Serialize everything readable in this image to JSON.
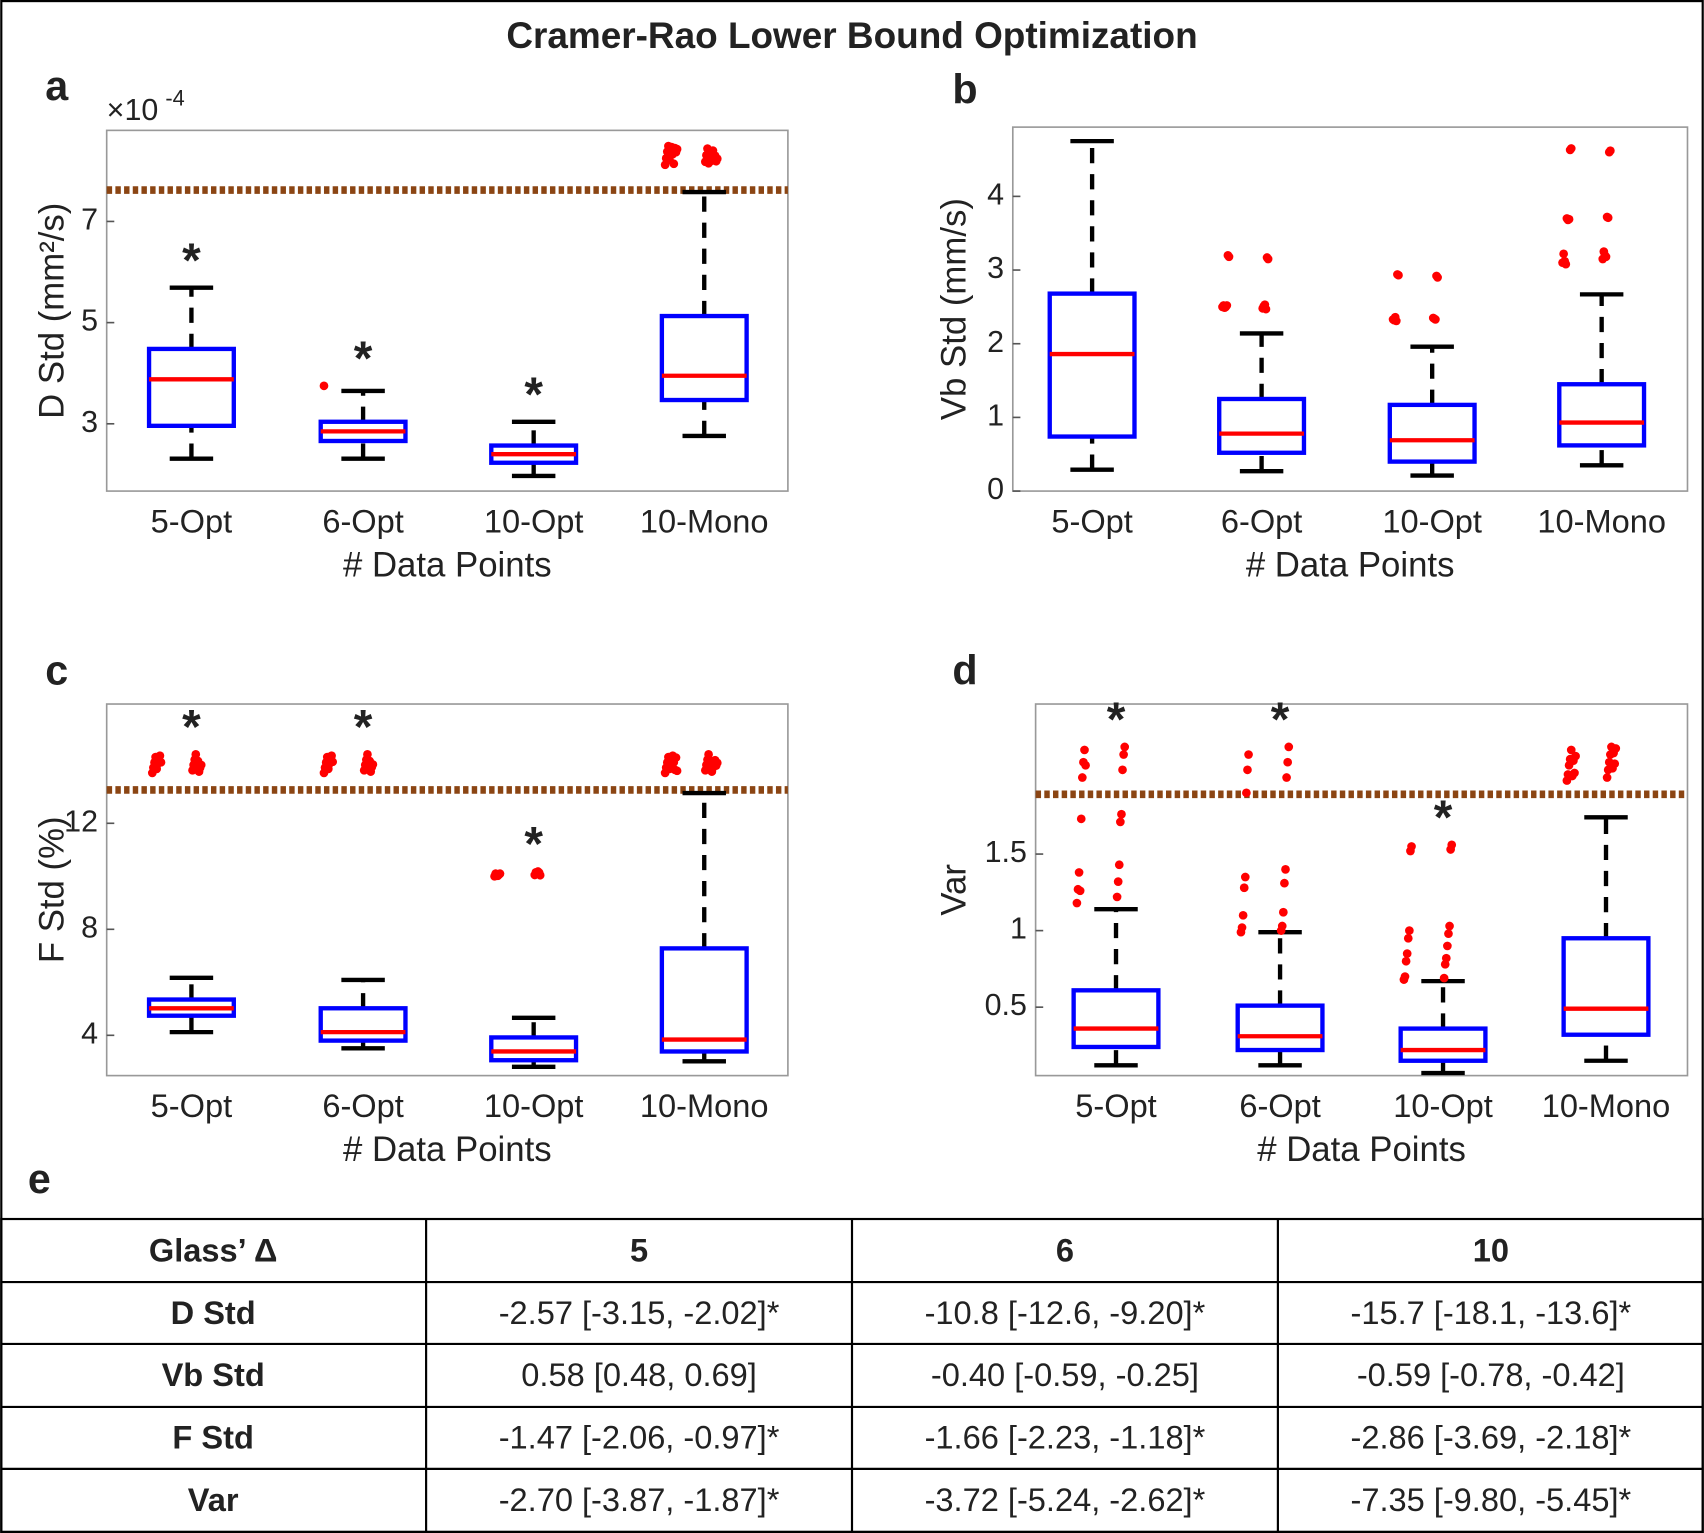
{
  "title": "Cramer-Rao Lower Bound Optimization",
  "chart_data": [
    {
      "type": "box",
      "panel_label": "a",
      "ylabel": "D Std (mm²/s)",
      "xlabel": "# Data Points",
      "multiplier": "×10",
      "multiplier_exp": "-4",
      "categories": [
        "5-Opt",
        "6-Opt",
        "10-Opt",
        "10-Mono"
      ],
      "ylim": [
        1.67,
        8.8
      ],
      "yticks": [
        3,
        5,
        7
      ],
      "threshold": 7.62,
      "significance": [
        "*",
        "*",
        "*",
        null
      ],
      "boxes": [
        {
          "whislo": 2.31,
          "q1": 2.96,
          "med": 3.88,
          "q3": 4.48,
          "whishi": 5.69,
          "outliers": []
        },
        {
          "whislo": 2.31,
          "q1": 2.66,
          "med": 2.85,
          "q3": 3.04,
          "whishi": 3.65,
          "outliers": [
            3.75
          ]
        },
        {
          "whislo": 1.97,
          "q1": 2.23,
          "med": 2.4,
          "q3": 2.57,
          "whishi": 3.04,
          "outliers": []
        },
        {
          "whislo": 2.76,
          "q1": 3.47,
          "med": 3.95,
          "q3": 5.13,
          "whishi": 7.58,
          "outliers": [
            8.12,
            8.18,
            8.25,
            8.31,
            8.38,
            8.44,
            8.49,
            8.15,
            8.22,
            8.35,
            8.41,
            8.28,
            8.47,
            8.2,
            8.33,
            8.4,
            8.14,
            8.26,
            8.45,
            8.3,
            8.37,
            8.19,
            8.43,
            8.24
          ]
        }
      ]
    },
    {
      "type": "box",
      "panel_label": "b",
      "ylabel": "Vb Std (mm/s)",
      "xlabel": "# Data Points",
      "categories": [
        "5-Opt",
        "6-Opt",
        "10-Opt",
        "10-Mono"
      ],
      "ylim": [
        0,
        4.94
      ],
      "yticks": [
        0,
        1,
        2,
        3,
        4
      ],
      "significance": [
        null,
        null,
        null,
        null
      ],
      "boxes": [
        {
          "whislo": 0.29,
          "q1": 0.74,
          "med": 1.86,
          "q3": 2.68,
          "whishi": 4.75,
          "outliers": []
        },
        {
          "whislo": 0.27,
          "q1": 0.52,
          "med": 0.78,
          "q3": 1.25,
          "whishi": 2.14,
          "outliers": [
            2.5,
            2.48,
            2.52,
            2.51,
            2.49,
            2.53,
            2.5,
            2.47,
            2.52,
            3.17,
            3.2,
            3.15,
            3.18
          ]
        },
        {
          "whislo": 0.21,
          "q1": 0.4,
          "med": 0.69,
          "q3": 1.17,
          "whishi": 1.96,
          "outliers": [
            2.33,
            2.35,
            2.32,
            2.34,
            2.36,
            2.33,
            2.31,
            2.92,
            2.94,
            2.9,
            2.93
          ]
        },
        {
          "whislo": 0.35,
          "q1": 0.62,
          "med": 0.93,
          "q3": 1.45,
          "whishi": 2.67,
          "outliers": [
            3.1,
            3.15,
            3.22,
            3.25,
            3.12,
            3.2,
            3.08,
            3.18,
            3.7,
            3.72,
            3.68,
            3.71,
            3.69,
            4.6,
            4.63,
            4.62,
            4.65
          ]
        }
      ]
    },
    {
      "type": "box",
      "panel_label": "c",
      "ylabel": "F Std (%)",
      "xlabel": "# Data Points",
      "categories": [
        "5-Opt",
        "6-Opt",
        "10-Opt",
        "10-Mono"
      ],
      "ylim": [
        2.48,
        16.5
      ],
      "yticks": [
        4,
        8,
        12
      ],
      "threshold": 13.26,
      "significance": [
        "*",
        "*",
        "*",
        null
      ],
      "boxes": [
        {
          "whislo": 4.12,
          "q1": 4.74,
          "med": 5.02,
          "q3": 5.35,
          "whishi": 6.17,
          "outliers": [
            13.9,
            14.0,
            14.1,
            14.2,
            14.3,
            14.4,
            14.5,
            14.6,
            14.05,
            14.15,
            14.25,
            14.35,
            14.45,
            13.95,
            14.55,
            14.1,
            14.3,
            14.2
          ]
        },
        {
          "whislo": 3.51,
          "q1": 3.8,
          "med": 4.12,
          "q3": 5.02,
          "whishi": 6.09,
          "outliers": [
            13.9,
            14.0,
            14.1,
            14.2,
            14.3,
            14.4,
            14.5,
            14.6,
            14.05,
            14.15,
            14.25,
            14.35,
            14.45,
            13.95,
            14.55,
            14.12,
            14.32,
            14.22
          ]
        },
        {
          "whislo": 2.81,
          "q1": 3.06,
          "med": 3.39,
          "q3": 3.92,
          "whishi": 4.66,
          "outliers": [
            10.0,
            10.05,
            10.1,
            10.15,
            10.08,
            10.12,
            10.02,
            10.18,
            10.06,
            10.14,
            10.1,
            10.04
          ]
        },
        {
          "whislo": 3.02,
          "q1": 3.39,
          "med": 3.84,
          "q3": 7.28,
          "whishi": 13.14,
          "outliers": [
            13.9,
            14.0,
            14.1,
            14.2,
            14.3,
            14.4,
            14.5,
            14.6,
            14.05,
            14.15,
            14.25,
            14.35,
            14.45,
            13.95,
            14.55,
            14.1,
            14.3,
            14.2,
            14.02,
            14.38,
            14.48,
            14.18,
            13.98,
            14.28
          ]
        }
      ]
    },
    {
      "type": "box",
      "panel_label": "d",
      "ylabel": "Var",
      "xlabel": "# Data Points",
      "categories": [
        "5-Opt",
        "6-Opt",
        "10-Opt",
        "10-Mono"
      ],
      "ylim": [
        0.053,
        2.48
      ],
      "yticks": [
        0.5,
        1,
        1.5
      ],
      "threshold": 1.89,
      "significance": [
        "*",
        "*",
        "*",
        null
      ],
      "boxes": [
        {
          "whislo": 0.12,
          "q1": 0.24,
          "med": 0.36,
          "q3": 0.61,
          "whishi": 1.14,
          "outliers": [
            1.18,
            1.22,
            1.27,
            1.32,
            1.38,
            1.43,
            1.26,
            1.71,
            1.73,
            1.76,
            2.0,
            2.05,
            2.1,
            2.15,
            2.18,
            2.2,
            2.08
          ]
        },
        {
          "whislo": 0.12,
          "q1": 0.22,
          "med": 0.31,
          "q3": 0.51,
          "whishi": 0.99,
          "outliers": [
            0.99,
            1.0,
            1.02,
            1.03,
            1.1,
            1.12,
            1.28,
            1.31,
            1.35,
            1.4,
            1.9,
            2.0,
            2.05,
            2.1,
            2.15,
            2.2
          ]
        },
        {
          "whislo": 0.07,
          "q1": 0.15,
          "med": 0.22,
          "q3": 0.36,
          "whishi": 0.67,
          "outliers": [
            0.68,
            0.69,
            0.7,
            0.78,
            0.8,
            0.82,
            0.85,
            0.9,
            0.95,
            0.98,
            1.0,
            1.03,
            1.52,
            1.53,
            1.55,
            1.56
          ]
        },
        {
          "whislo": 0.15,
          "q1": 0.32,
          "med": 0.49,
          "q3": 0.95,
          "whishi": 1.74,
          "outliers": [
            1.98,
            2.0,
            2.02,
            2.05,
            2.08,
            2.1,
            2.12,
            2.15,
            2.18,
            2.2,
            2.01,
            2.06,
            2.11,
            2.16,
            2.03,
            2.09,
            2.14,
            2.19
          ]
        }
      ]
    }
  ],
  "table": {
    "label": "e",
    "header": [
      "Glass’ Δ",
      "5",
      "6",
      "10"
    ],
    "rows": [
      [
        "D Std",
        "-2.57 [-3.15, -2.02]*",
        "-10.8 [-12.6, -9.20]*",
        "-15.7 [-18.1, -13.6]*"
      ],
      [
        "Vb Std",
        "0.58 [0.48, 0.69]",
        "-0.40 [-0.59, -0.25]",
        "-0.59 [-0.78, -0.42]"
      ],
      [
        "F Std",
        "-1.47 [-2.06, -0.97]*",
        "-1.66 [-2.23, -1.18]*",
        "-2.86 [-3.69, -2.18]*"
      ],
      [
        "Var",
        "-2.70 [-3.87, -1.87]*",
        "-3.72 [-5.24, -2.62]*",
        "-7.35 [-9.80, -5.45]*"
      ]
    ]
  }
}
